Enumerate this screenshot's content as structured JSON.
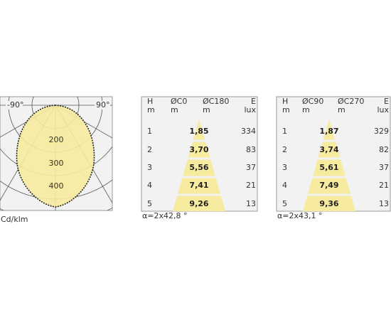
{
  "polar": {
    "left_angle": "-90°",
    "right_angle": "90°",
    "rings": [
      "200",
      "300",
      "400"
    ],
    "unit": "Cd/klm"
  },
  "tables": [
    {
      "headers": [
        [
          "H",
          "m"
        ],
        [
          "ØC0",
          "m"
        ],
        [
          "ØC180",
          "m"
        ],
        [
          "E",
          "lux"
        ]
      ],
      "rows": [
        [
          1,
          "1,85",
          334
        ],
        [
          2,
          "3,70",
          83
        ],
        [
          3,
          "5,56",
          37
        ],
        [
          4,
          "7,41",
          21
        ],
        [
          5,
          "9,26",
          13
        ]
      ],
      "footer": "α=2x42,8 °"
    },
    {
      "headers": [
        [
          "H",
          "m"
        ],
        [
          "ØC90",
          "m"
        ],
        [
          "ØC270",
          "m"
        ],
        [
          "E",
          "lux"
        ]
      ],
      "rows": [
        [
          1,
          "1,87",
          329
        ],
        [
          2,
          "3,74",
          82
        ],
        [
          3,
          "5,61",
          37
        ],
        [
          4,
          "7,49",
          21
        ],
        [
          5,
          "9,36",
          13
        ]
      ],
      "footer": "α=2x43,1 °"
    }
  ]
}
